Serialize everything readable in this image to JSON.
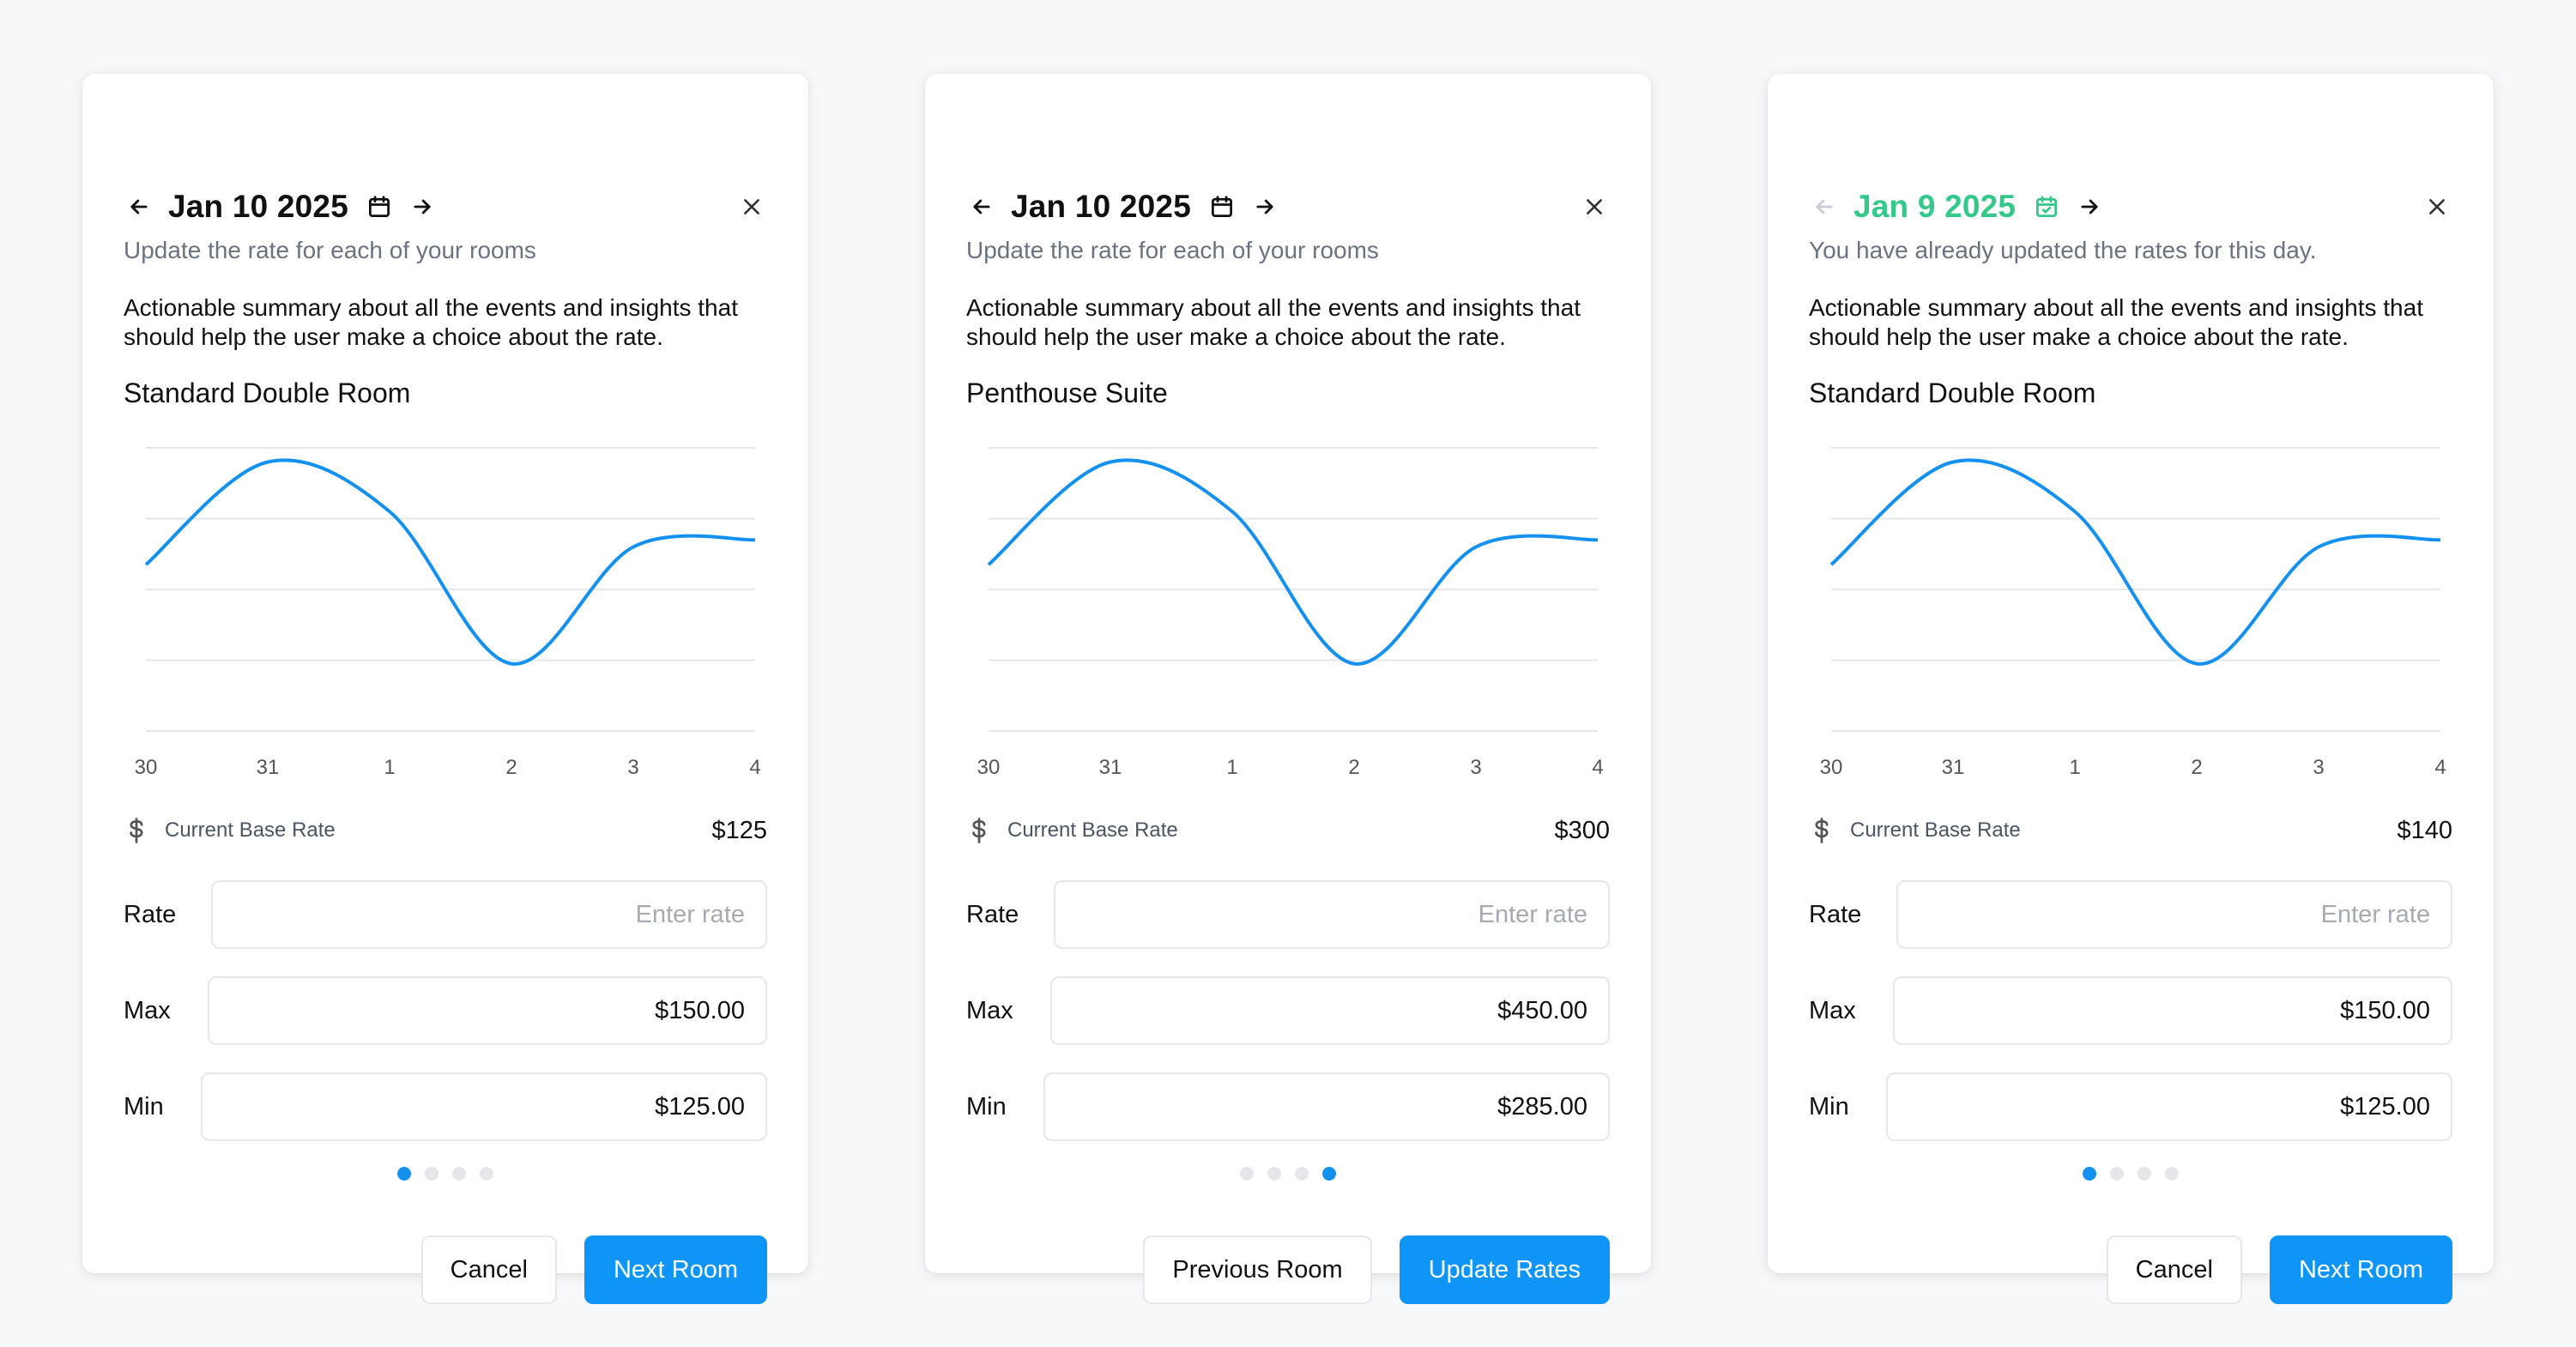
{
  "colors": {
    "accent": "#1491f0",
    "done": "#34c98a",
    "grid": "#e5e7eb"
  },
  "icons": [
    "arrow-left-icon",
    "arrow-right-icon",
    "calendar-icon",
    "calendar-check-icon",
    "close-icon",
    "dollar-icon"
  ],
  "cards": [
    {
      "date": "Jan 10 2025",
      "subtitle": "Update the rate for each of your rooms",
      "summary": "Actionable summary about all the events and insights that should help the user make a choice about the rate.",
      "room": "Standard Double Room",
      "base_rate_label": "Current Base Rate",
      "base_rate_value": "$125",
      "rate_label": "Rate",
      "rate_placeholder": "Enter rate",
      "max_label": "Max",
      "max_value": "$150.00",
      "min_label": "Min",
      "min_value": "$125.00",
      "page_index": 0,
      "page_count": 4,
      "secondary_button": "Cancel",
      "primary_button": "Next Room"
    },
    {
      "date": "Jan 10 2025",
      "subtitle": "Update the rate for each of your rooms",
      "summary": "Actionable summary about all the events and insights that should help the user make a choice about the rate.",
      "room": "Penthouse Suite",
      "base_rate_label": "Current Base Rate",
      "base_rate_value": "$300",
      "rate_label": "Rate",
      "rate_placeholder": "Enter rate",
      "max_label": "Max",
      "max_value": "$450.00",
      "min_label": "Min",
      "min_value": "$285.00",
      "page_index": 3,
      "page_count": 4,
      "secondary_button": "Previous Room",
      "primary_button": "Update Rates"
    },
    {
      "date": "Jan 9 2025",
      "subtitle": "You have already updated the rates for this day.",
      "summary": "Actionable summary about all the events and insights that should help the user make a choice about the rate.",
      "room": "Standard Double Room",
      "base_rate_label": "Current Base Rate",
      "base_rate_value": "$140",
      "rate_label": "Rate",
      "rate_placeholder": "Enter rate",
      "max_label": "Max",
      "max_value": "$150.00",
      "min_label": "Min",
      "min_value": "$125.00",
      "page_index": 0,
      "page_count": 4,
      "secondary_button": "Cancel",
      "primary_button": "Next Room"
    }
  ],
  "chart_data": [
    {
      "type": "line",
      "x": [
        "30",
        "31",
        "1",
        "2",
        "3",
        "4"
      ],
      "series": [
        {
          "values": [
            2.35,
            3.8,
            3.1,
            0.95,
            2.6,
            2.7
          ]
        }
      ],
      "ylim": [
        0,
        4
      ],
      "grid": true,
      "legend": false
    },
    {
      "type": "line",
      "x": [
        "30",
        "31",
        "1",
        "2",
        "3",
        "4"
      ],
      "series": [
        {
          "values": [
            2.35,
            3.8,
            3.1,
            0.95,
            2.6,
            2.7
          ]
        }
      ],
      "ylim": [
        0,
        4
      ],
      "grid": true,
      "legend": false
    },
    {
      "type": "line",
      "x": [
        "30",
        "31",
        "1",
        "2",
        "3",
        "4"
      ],
      "series": [
        {
          "values": [
            2.35,
            3.8,
            3.1,
            0.95,
            2.6,
            2.7
          ]
        }
      ],
      "ylim": [
        0,
        4
      ],
      "grid": true,
      "legend": false
    }
  ]
}
